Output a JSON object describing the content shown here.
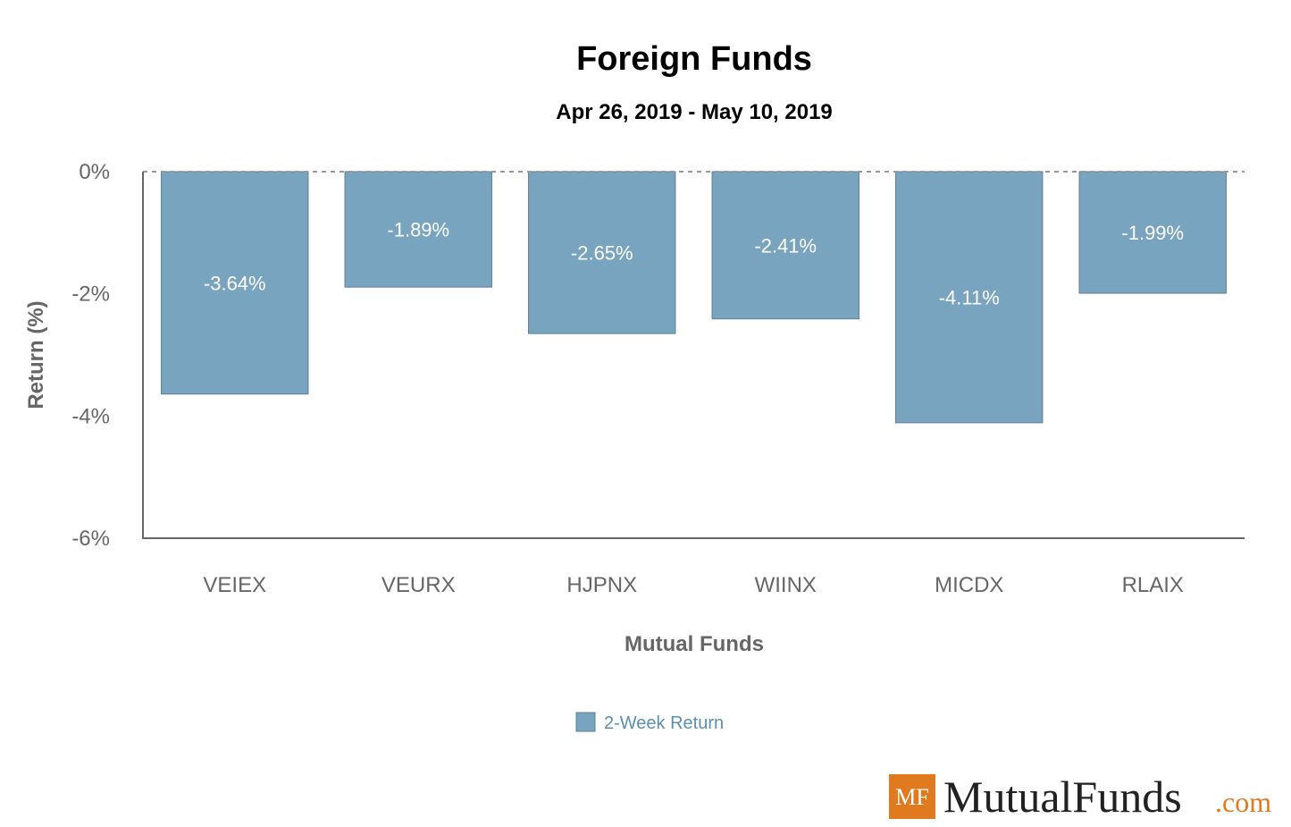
{
  "colors": {
    "bar": "#78a4bf",
    "bar_edge": "#5f7f93",
    "axis": "#666666",
    "zero_line": "#999999",
    "logo_orange": "#e07a1f"
  },
  "chart_data": {
    "type": "bar",
    "title": "Foreign Funds",
    "subtitle": "Apr 26, 2019 - May 10, 2019",
    "xlabel": "Mutual Funds",
    "ylabel": "Return (%)",
    "categories": [
      "VEIEX",
      "VEURX",
      "HJPNX",
      "WIINX",
      "MICDX",
      "RLAIX"
    ],
    "series": [
      {
        "name": "2-Week Return",
        "values": [
          -3.64,
          -1.89,
          -2.65,
          -2.41,
          -4.11,
          -1.99
        ],
        "labels": [
          "-3.64%",
          "-1.89%",
          "-2.65%",
          "-2.41%",
          "-4.11%",
          "-1.99%"
        ]
      }
    ],
    "ylim": [
      -6,
      0
    ],
    "yticks": [
      0,
      -2,
      -4,
      -6
    ],
    "ytick_labels": [
      "0%",
      "-2%",
      "-4%",
      "-6%"
    ],
    "legend_position": "bottom-center",
    "grid": false
  },
  "logo": {
    "badge": "MF",
    "name": "MutualFunds",
    "suffix": ".com"
  }
}
